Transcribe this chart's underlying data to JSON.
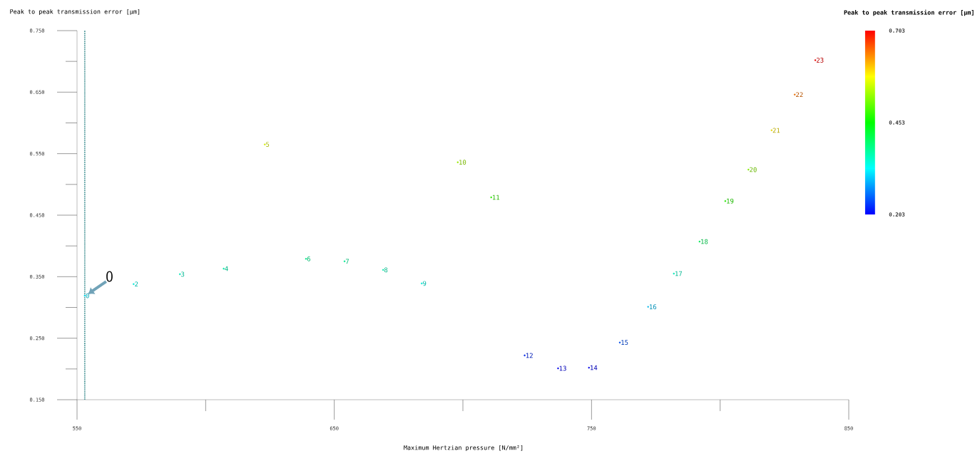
{
  "chart_data": {
    "type": "scatter",
    "xlabel": "Maximum Hertzian pressure [N/mm²]",
    "ylabel": "Peak to peak transmission error [μm]",
    "clabel": "Peak to peak transmission error [μm]",
    "x": [
      553,
      572,
      590,
      607,
      623,
      639,
      654,
      669,
      684,
      698,
      711,
      724,
      737,
      749,
      761,
      772,
      782,
      792,
      802,
      811,
      820,
      829,
      837
    ],
    "values": [
      0.319,
      0.338,
      0.354,
      0.363,
      0.565,
      0.379,
      0.375,
      0.361,
      0.339,
      0.536,
      0.479,
      0.222,
      0.201,
      0.202,
      0.243,
      0.301,
      0.355,
      0.407,
      0.473,
      0.524,
      0.588,
      0.646,
      0.702
    ],
    "cvalues": [
      0.319,
      0.338,
      0.354,
      0.363,
      0.565,
      0.379,
      0.375,
      0.361,
      0.339,
      0.536,
      0.479,
      0.222,
      0.201,
      0.202,
      0.243,
      0.301,
      0.355,
      0.407,
      0.473,
      0.524,
      0.588,
      0.646,
      0.702
    ],
    "clim": [
      0.203,
      0.703
    ],
    "cticks": [
      {
        "value": 0.203,
        "label": "0.203"
      },
      {
        "value": 0.453,
        "label": "0.453"
      },
      {
        "value": 0.703,
        "label": "0.703"
      }
    ],
    "xlim": [
      550,
      850
    ],
    "ylim": [
      0.15,
      0.75
    ],
    "xticks": [
      550,
      {
        "value": 600,
        "label": null
      },
      650,
      {
        "value": 700,
        "label": null
      },
      750,
      {
        "value": 800,
        "label": null
      },
      850
    ],
    "yticks": [
      {
        "value": 0.15,
        "label": "0.150"
      },
      {
        "value": 0.2,
        "label": null
      },
      {
        "value": 0.25,
        "label": "0.250"
      },
      {
        "value": 0.3,
        "label": null
      },
      {
        "value": 0.35,
        "label": "0.350"
      },
      {
        "value": 0.4,
        "label": null
      },
      {
        "value": 0.45,
        "label": "0.450"
      },
      {
        "value": 0.5,
        "label": null
      },
      {
        "value": 0.55,
        "label": "0.550"
      },
      {
        "value": 0.6,
        "label": null
      },
      {
        "value": 0.65,
        "label": "0.650"
      },
      {
        "value": 0.7,
        "label": null
      },
      {
        "value": 0.75,
        "label": "0.750"
      }
    ],
    "marker": "circle",
    "ref_lines": [
      {
        "axis": "x",
        "value": 553,
        "color": "#5a9ea0",
        "line_style": "dotted"
      }
    ],
    "annotations": [
      {
        "text": "0",
        "x": 553,
        "y": 0.319
      },
      {
        "text": "0",
        "x": 553,
        "y": 0.319
      },
      {
        "text": "2",
        "x": 572,
        "y": 0.338
      },
      {
        "text": "3",
        "x": 590,
        "y": 0.354
      },
      {
        "text": "4",
        "x": 607,
        "y": 0.363
      },
      {
        "text": "5",
        "x": 623,
        "y": 0.565
      },
      {
        "text": "6",
        "x": 639,
        "y": 0.379
      },
      {
        "text": "7",
        "x": 654,
        "y": 0.375
      },
      {
        "text": "8",
        "x": 669,
        "y": 0.361
      },
      {
        "text": "9",
        "x": 684,
        "y": 0.339
      },
      {
        "text": "10",
        "x": 698,
        "y": 0.536
      },
      {
        "text": "11",
        "x": 711,
        "y": 0.479
      },
      {
        "text": "12",
        "x": 724,
        "y": 0.222
      },
      {
        "text": "13",
        "x": 737,
        "y": 0.201
      },
      {
        "text": "14",
        "x": 749,
        "y": 0.202
      },
      {
        "text": "15",
        "x": 761,
        "y": 0.243
      },
      {
        "text": "16",
        "x": 772,
        "y": 0.301
      },
      {
        "text": "17",
        "x": 782,
        "y": 0.355
      },
      {
        "text": "18",
        "x": 792,
        "y": 0.407
      },
      {
        "text": "19",
        "x": 802,
        "y": 0.473
      },
      {
        "text": "20",
        "x": 811,
        "y": 0.524
      },
      {
        "text": "21",
        "x": 820,
        "y": 0.588
      },
      {
        "text": "22",
        "x": 829,
        "y": 0.646
      },
      {
        "text": "23",
        "x": 837,
        "y": 0.702
      }
    ]
  }
}
